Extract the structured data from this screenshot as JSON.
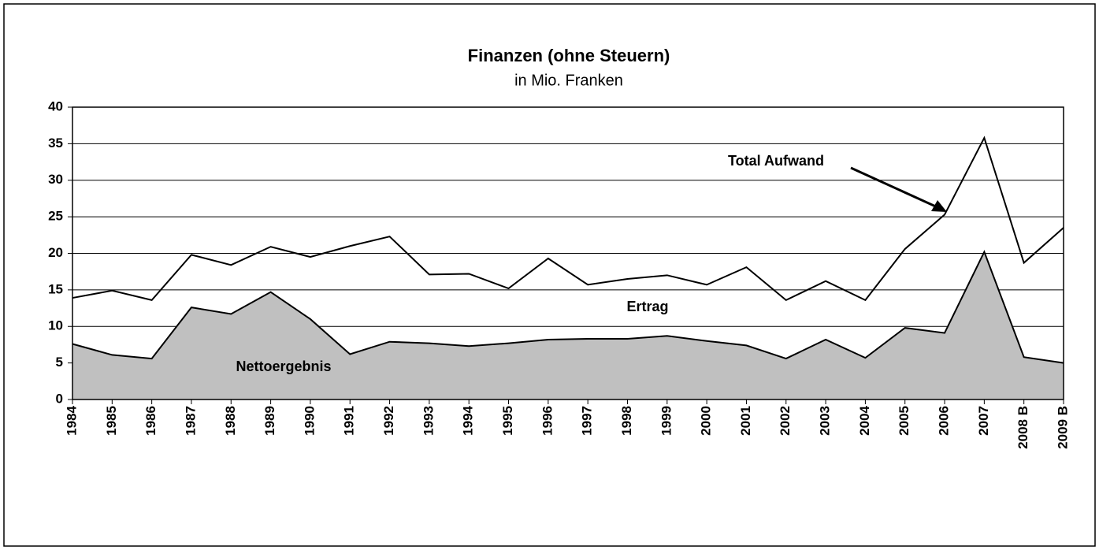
{
  "chart_data": {
    "type": "area",
    "title": "Finanzen (ohne Steuern)",
    "subtitle": "in Mio. Franken",
    "categories": [
      "1984",
      "1985",
      "1986",
      "1987",
      "1988",
      "1989",
      "1990",
      "1991",
      "1992",
      "1993",
      "1994",
      "1995",
      "1996",
      "1997",
      "1998",
      "1999",
      "2000",
      "2001",
      "2002",
      "2003",
      "2004",
      "2005",
      "2006",
      "2007",
      "2008 B",
      "2009 B"
    ],
    "series": [
      {
        "name": "Total Aufwand",
        "color": "#000000",
        "values": [
          13.9,
          14.9,
          13.6,
          19.8,
          18.4,
          20.9,
          19.5,
          21.0,
          22.3,
          17.1,
          17.2,
          15.2,
          19.3,
          15.7,
          16.5,
          17.0,
          15.7,
          18.1,
          13.6,
          16.2,
          13.6,
          20.6,
          25.3,
          35.8,
          18.7,
          23.5
        ]
      },
      {
        "name": "Nettoergebnis",
        "color": "#c0c0c0",
        "values": [
          7.6,
          6.1,
          5.6,
          12.6,
          11.7,
          14.7,
          11.0,
          6.2,
          7.9,
          7.7,
          7.3,
          7.7,
          8.2,
          8.3,
          8.3,
          8.7,
          8.0,
          7.4,
          5.6,
          8.2,
          5.7,
          9.8,
          9.1,
          20.2,
          5.8,
          5.0
        ]
      }
    ],
    "annotations": [
      "Ertrag"
    ],
    "ylim": [
      0,
      40
    ],
    "yticks": [
      0,
      5,
      10,
      15,
      20,
      25,
      30,
      35,
      40
    ],
    "grid": true
  }
}
